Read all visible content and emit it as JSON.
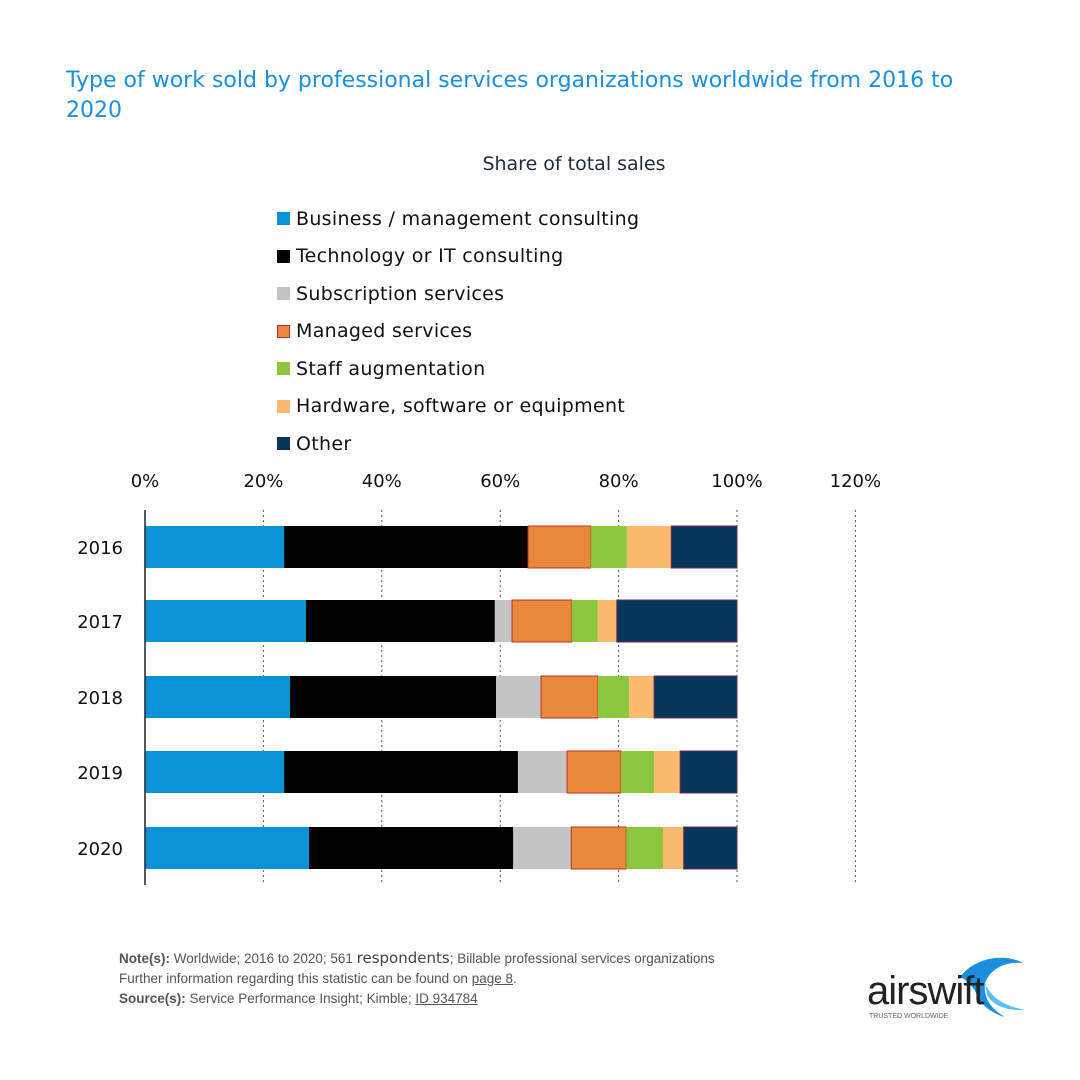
{
  "chart_data": {
    "type": "bar",
    "orientation": "horizontal",
    "stacked": true,
    "title": "Type of work sold by professional services organizations worldwide from 2016 to 2020",
    "subtitle": "Share of total sales",
    "categories": [
      "2016",
      "2017",
      "2018",
      "2019",
      "2020"
    ],
    "xlim": [
      0,
      120
    ],
    "x_ticks": [
      "0%",
      "20%",
      "40%",
      "60%",
      "80%",
      "100%",
      "120%"
    ],
    "grid": "vertical dotted",
    "legend_placement": "top",
    "series": [
      {
        "name": "Business / management consulting",
        "color": "#0a93d6",
        "values": [
          23.5,
          27.2,
          24.5,
          23.5,
          27.7
        ]
      },
      {
        "name": "Technology or IT consulting",
        "color": "#000000",
        "values": [
          41.2,
          31.9,
          34.8,
          39.5,
          34.5
        ]
      },
      {
        "name": "Subscription services",
        "color": "#c4c4c4",
        "values": [
          0,
          2.9,
          7.6,
          8.3,
          9.8
        ]
      },
      {
        "name": "Managed services",
        "color": "#e8883a",
        "values": [
          10.6,
          10.1,
          9.6,
          9.1,
          9.3
        ]
      },
      {
        "name": "Staff augmentation",
        "color": "#8dc63f",
        "values": [
          6.1,
          4.4,
          5.3,
          5.6,
          6.2
        ]
      },
      {
        "name": "Hardware, software or equipment",
        "color": "#fbb96b",
        "values": [
          7.5,
          3.2,
          4.2,
          4.4,
          3.5
        ]
      },
      {
        "name": "Other",
        "color": "#06375a",
        "values": [
          11.1,
          20.3,
          14.0,
          9.6,
          9.0
        ]
      }
    ]
  },
  "notes": {
    "note_label": "Note(s):",
    "note_text": "Worldwide; 2016 to 2020; 561 ",
    "note_respondents": "respondents",
    "note_rest": ";  Billable professional services organizations",
    "further": "Further information regarding this statistic can be found on ",
    "page_link": "page 8",
    "source_label": "Source(s):",
    "source_text": "Service Performance Insight; Kimble; ",
    "id_link": "ID 934784"
  },
  "logo": {
    "name": "airswift",
    "tagline": "TRUSTED WORLDWIDE"
  }
}
